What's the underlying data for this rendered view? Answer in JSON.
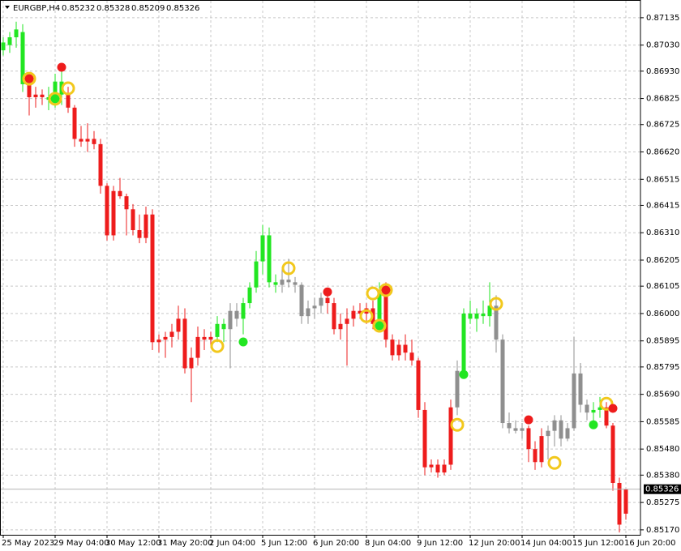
{
  "chart_data": {
    "type": "candlestick",
    "symbol": "EURGBP,H4",
    "ylim": [
      0.85151,
      0.87203
    ],
    "yticks": [
      0.87135,
      {
        "value": 0.8703,
        "label": "0.87030"
      },
      {
        "value": 0.8693,
        "label": "0.86930"
      },
      0.86825,
      0.86725,
      {
        "value": 0.8662,
        "label": "0.86620"
      },
      0.86515,
      0.86415,
      {
        "value": 0.8631,
        "label": "0.86310"
      },
      0.86205,
      0.86105,
      {
        "value": 0.86,
        "label": "0.86000"
      },
      0.85895,
      0.85795,
      {
        "value": 0.8569,
        "label": "0.85690"
      },
      0.85585,
      {
        "value": 0.8548,
        "label": "0.85480"
      },
      {
        "value": 0.8538,
        "label": "0.85380"
      },
      0.85275,
      {
        "value": 0.8517,
        "label": "0.85170"
      }
    ],
    "grid": true,
    "categories": [
      "25 May 2023",
      null,
      null,
      null,
      null,
      null,
      null,
      null,
      "29 May 04:00",
      null,
      null,
      null,
      null,
      null,
      null,
      null,
      "30 May 12:00",
      null,
      null,
      null,
      null,
      null,
      null,
      null,
      "31 May 20:00",
      null,
      null,
      null,
      null,
      null,
      null,
      null,
      "2 Jun 04:00",
      null,
      null,
      null,
      null,
      null,
      null,
      null,
      "5 Jun 12:00",
      null,
      null,
      null,
      null,
      null,
      null,
      null,
      "6 Jun 20:00",
      null,
      null,
      null,
      null,
      null,
      null,
      null,
      "8 Jun 04:00",
      null,
      null,
      null,
      null,
      null,
      null,
      null,
      "9 Jun 12:00",
      null,
      null,
      null,
      null,
      null,
      null,
      null,
      "12 Jun 20:00",
      null,
      null,
      null,
      null,
      null,
      null,
      null,
      "14 Jun 04:00",
      null,
      null,
      null,
      null,
      null,
      null,
      null,
      "15 Jun 12:00",
      null,
      null,
      null,
      null,
      null,
      null,
      null,
      "16 Jun 20:00"
    ],
    "open": [
      0.8701,
      0.8703,
      0.8706,
      0.8708,
      0.8688,
      0.8683,
      0.8684,
      0.8683,
      0.8682,
      0.8689,
      0.8684,
      0.8679,
      0.8667,
      0.8666,
      0.8667,
      0.8665,
      0.8649,
      0.863,
      0.8647,
      0.8645,
      0.864,
      0.8632,
      0.8629,
      0.8638,
      0.8589,
      0.859,
      0.8591,
      0.8593,
      0.8598,
      0.8579,
      0.8583,
      0.8591,
      0.859,
      0.8591,
      0.8596,
      0.8594,
      0.8601,
      0.8598,
      0.8604,
      0.861,
      0.862,
      0.863,
      0.8612,
      0.8611,
      0.8613,
      0.8612,
      0.8611,
      0.8599,
      0.8602,
      0.8603,
      0.8606,
      0.8604,
      0.8594,
      0.8596,
      0.8598,
      0.8601,
      0.86,
      0.8602,
      0.8596,
      0.8608,
      0.859,
      0.8584,
      0.8588,
      0.8585,
      0.8582,
      0.8563,
      0.8541,
      0.8542,
      0.8539,
      0.8542,
      0.8564,
      0.8578,
      0.86,
      0.8598,
      0.86,
      0.8599,
      0.8603,
      0.859,
      0.8558,
      0.8556,
      0.8555,
      0.8556,
      0.8548,
      0.8543,
      0.8553,
      0.8555,
      0.8559,
      0.8552,
      0.8556,
      0.8577,
      0.8565,
      0.8562,
      0.8563,
      0.8564,
      0.8557,
      0.8535,
      0.85232
    ],
    "high": [
      0.8706,
      0.8708,
      0.8712,
      0.8711,
      0.8692,
      0.8687,
      0.8686,
      0.8687,
      0.8692,
      0.8693,
      0.8687,
      0.868,
      0.8672,
      0.8673,
      0.867,
      0.8667,
      0.865,
      0.8649,
      0.8652,
      0.8646,
      0.8642,
      0.8638,
      0.8641,
      0.864,
      0.8592,
      0.8593,
      0.8596,
      0.8603,
      0.8602,
      0.8587,
      0.8595,
      0.8594,
      0.8593,
      0.8599,
      0.8598,
      0.8604,
      0.8604,
      0.8606,
      0.8612,
      0.8624,
      0.8634,
      0.8633,
      0.8615,
      0.8618,
      0.8621,
      0.8614,
      0.8612,
      0.8605,
      0.8606,
      0.8608,
      0.8608,
      0.8606,
      0.86,
      0.8602,
      0.8603,
      0.8604,
      0.8604,
      0.8605,
      0.8612,
      0.8612,
      0.8592,
      0.859,
      0.8592,
      0.859,
      0.8583,
      0.8566,
      0.8544,
      0.8544,
      0.8544,
      0.8567,
      0.8582,
      0.8602,
      0.8605,
      0.8602,
      0.8605,
      0.8612,
      0.8607,
      0.8592,
      0.8562,
      0.8559,
      0.8558,
      0.8557,
      0.8551,
      0.8556,
      0.8557,
      0.8561,
      0.8561,
      0.8558,
      0.8591,
      0.8581,
      0.8567,
      0.8566,
      0.8568,
      0.8566,
      0.8558,
      0.8537,
      0.85328
    ],
    "low": [
      0.8699,
      0.87,
      0.8702,
      0.8685,
      0.8676,
      0.8679,
      0.868,
      0.8678,
      0.8679,
      0.868,
      0.8677,
      0.8664,
      0.8664,
      0.8662,
      0.8663,
      0.8646,
      0.8628,
      0.8628,
      0.8644,
      0.863,
      0.863,
      0.8627,
      0.8627,
      0.8586,
      0.8585,
      0.8583,
      0.8587,
      0.859,
      0.8577,
      0.8566,
      0.858,
      0.8586,
      0.8587,
      0.8589,
      0.8589,
      0.8579,
      0.8595,
      0.8592,
      0.8602,
      0.8608,
      0.8615,
      0.861,
      0.8608,
      0.8608,
      0.861,
      0.8608,
      0.8596,
      0.8596,
      0.8598,
      0.86,
      0.86,
      0.8592,
      0.859,
      0.858,
      0.8595,
      0.8598,
      0.8596,
      0.8594,
      0.8594,
      0.8587,
      0.8582,
      0.8582,
      0.8582,
      0.858,
      0.856,
      0.8538,
      0.8539,
      0.8537,
      0.8538,
      0.854,
      0.8561,
      0.8575,
      0.8596,
      0.8593,
      0.8596,
      0.8595,
      0.8585,
      0.8556,
      0.8554,
      0.8554,
      0.8552,
      0.8543,
      0.854,
      0.8541,
      0.8544,
      0.8549,
      0.8549,
      0.8551,
      0.8555,
      0.8562,
      0.8559,
      0.8556,
      0.856,
      0.8556,
      0.8532,
      0.8516,
      0.85209
    ],
    "close": [
      0.8704,
      0.8706,
      0.8709,
      0.8688,
      0.8683,
      0.8684,
      0.8683,
      0.8682,
      0.8689,
      0.8684,
      0.8679,
      0.8667,
      0.8666,
      0.8667,
      0.8665,
      0.8649,
      0.863,
      0.8647,
      0.8645,
      0.864,
      0.8632,
      0.8629,
      0.8638,
      0.8589,
      0.859,
      0.8591,
      0.8593,
      0.8598,
      0.8579,
      0.8583,
      0.8591,
      0.859,
      0.8591,
      0.8596,
      0.8594,
      0.8601,
      0.8598,
      0.8604,
      0.861,
      0.862,
      0.863,
      0.8612,
      0.8611,
      0.8613,
      0.8612,
      0.8611,
      0.8599,
      0.8602,
      0.8603,
      0.8606,
      0.8604,
      0.8594,
      0.8596,
      0.8598,
      0.8601,
      0.86,
      0.8602,
      0.8596,
      0.8608,
      0.859,
      0.8584,
      0.8588,
      0.8585,
      0.8582,
      0.8563,
      0.8541,
      0.8542,
      0.8539,
      0.8542,
      0.8564,
      0.8578,
      0.86,
      0.8598,
      0.86,
      0.8599,
      0.8603,
      0.859,
      0.8558,
      0.8556,
      0.8555,
      0.8556,
      0.8548,
      0.8543,
      0.8553,
      0.8555,
      0.8559,
      0.8552,
      0.8556,
      0.8577,
      0.8565,
      0.8562,
      0.8563,
      0.8564,
      0.8557,
      0.8535,
      0.8519,
      0.85326
    ],
    "colors": [
      "#22e622",
      "#22e622",
      "#22e622",
      "#22e622",
      "#ee1c1c",
      "#ee1c1c",
      "#ee1c1c",
      "#22e622",
      "#22e622",
      "#22e622",
      "#ee1c1c",
      "#ee1c1c",
      "#ee1c1c",
      "#ee1c1c",
      "#ee1c1c",
      "#ee1c1c",
      "#ee1c1c",
      "#ee1c1c",
      "#ee1c1c",
      "#ee1c1c",
      "#ee1c1c",
      "#ee1c1c",
      "#ee1c1c",
      "#ee1c1c",
      "#ee1c1c",
      "#ee1c1c",
      "#ee1c1c",
      "#ee1c1c",
      "#ee1c1c",
      "#ee1c1c",
      "#ee1c1c",
      "#ee1c1c",
      "#ee1c1c",
      "#22e622",
      "#22e622",
      "#8f8f8f",
      "#8f8f8f",
      "#22e622",
      "#22e622",
      "#22e622",
      "#22e622",
      "#22e622",
      "#22e622",
      "#8f8f8f",
      "#8f8f8f",
      "#8f8f8f",
      "#8f8f8f",
      "#8f8f8f",
      "#8f8f8f",
      "#8f8f8f",
      "#ee1c1c",
      "#ee1c1c",
      "#ee1c1c",
      "#ee1c1c",
      "#ee1c1c",
      "#ee1c1c",
      "#ee1c1c",
      "#ee1c1c",
      "#22e622",
      "#ee1c1c",
      "#ee1c1c",
      "#ee1c1c",
      "#ee1c1c",
      "#ee1c1c",
      "#ee1c1c",
      "#ee1c1c",
      "#ee1c1c",
      "#ee1c1c",
      "#ee1c1c",
      "#ee1c1c",
      "#8f8f8f",
      "#22e622",
      "#22e622",
      "#22e622",
      "#22e622",
      "#22e622",
      "#8f8f8f",
      "#8f8f8f",
      "#8f8f8f",
      "#8f8f8f",
      "#8f8f8f",
      "#ee1c1c",
      "#ee1c1c",
      "#ee1c1c",
      "#8f8f8f",
      "#8f8f8f",
      "#8f8f8f",
      "#8f8f8f",
      "#8f8f8f",
      "#8f8f8f",
      "#8f8f8f",
      "#22e622",
      "#22e622",
      "#ee1c1c",
      "#ee1c1c",
      "#ee1c1c",
      "#ee1c1c"
    ],
    "markers": [
      {
        "candle": 4,
        "price": 0.86901,
        "color": "#ee1c1c",
        "ring": true
      },
      {
        "candle": 9,
        "price": 0.86945,
        "color": "#ee1c1c",
        "ring": false
      },
      {
        "candle": 8,
        "price": 0.86824,
        "color": "#22e622",
        "ring": true
      },
      {
        "candle": 10,
        "price": 0.86864,
        "color": null,
        "ring": true
      },
      {
        "candle": 33,
        "price": 0.85875,
        "color": null,
        "ring": true
      },
      {
        "candle": 37,
        "price": 0.85891,
        "color": "#22e622",
        "ring": false
      },
      {
        "candle": 44,
        "price": 0.86174,
        "color": null,
        "ring": true
      },
      {
        "candle": 50,
        "price": 0.86083,
        "color": "#ee1c1c",
        "ring": false
      },
      {
        "candle": 57,
        "price": 0.86077,
        "color": null,
        "ring": true
      },
      {
        "candle": 59,
        "price": 0.8609,
        "color": "#ee1c1c",
        "ring": true
      },
      {
        "candle": 56,
        "price": 0.8599,
        "color": null,
        "ring": true
      },
      {
        "candle": 58,
        "price": 0.85953,
        "color": "#22e622",
        "ring": true
      },
      {
        "candle": 70,
        "price": 0.85573,
        "color": null,
        "ring": true
      },
      {
        "candle": 71,
        "price": 0.85766,
        "color": "#22e622",
        "ring": false
      },
      {
        "candle": 76,
        "price": 0.86037,
        "color": null,
        "ring": true
      },
      {
        "candle": 81,
        "price": 0.85592,
        "color": "#ee1c1c",
        "ring": false
      },
      {
        "candle": 85,
        "price": 0.85427,
        "color": null,
        "ring": true
      },
      {
        "candle": 93,
        "price": 0.85654,
        "color": null,
        "ring": true
      },
      {
        "candle": 94,
        "price": 0.85636,
        "color": "#ee1c1c",
        "ring": false
      },
      {
        "candle": 91,
        "price": 0.85573,
        "color": "#22e622",
        "ring": false
      }
    ]
  }
}
